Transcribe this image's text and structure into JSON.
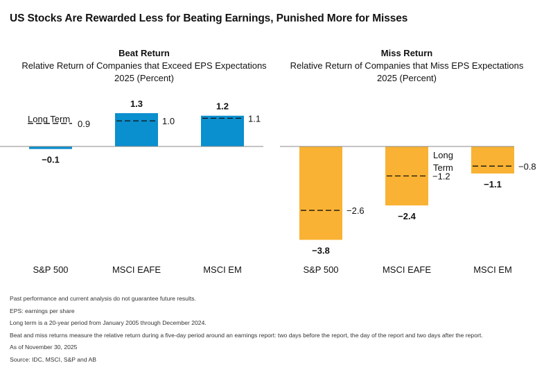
{
  "title": "US Stocks Are Rewarded Less for Beating Earnings, Punished More for Misses",
  "colors": {
    "beat": "#0a8fcf",
    "miss": "#f9b233",
    "dash": "#111111",
    "baseline": "#888888"
  },
  "chart_data": [
    {
      "type": "bar",
      "title": "Beat Return",
      "subtitle": "Relative Return of Companies that Exceed EPS Expectations",
      "period": "2025 (Percent)",
      "categories": [
        "S&P 500",
        "MSCI EAFE",
        "MSCI EM"
      ],
      "values": [
        -0.1,
        1.3,
        1.2
      ],
      "value_labels": [
        "−0.1",
        "1.3",
        "1.2"
      ],
      "long_term": [
        0.9,
        1.0,
        1.1
      ],
      "long_term_labels": [
        "0.9",
        "1.0",
        "1.1"
      ],
      "long_term_legend": [
        "Long Term"
      ],
      "ylim": [
        -0.5,
        1.9
      ]
    },
    {
      "type": "bar",
      "title": "Miss Return",
      "subtitle": "Relative Return of Companies that Miss EPS Expectations",
      "period": "2025 (Percent)",
      "categories": [
        "S&P 500",
        "MSCI EAFE",
        "MSCI EM"
      ],
      "values": [
        -3.8,
        -2.4,
        -1.1
      ],
      "value_labels": [
        "−3.8",
        "−2.4",
        "−1.1"
      ],
      "long_term": [
        -2.6,
        -1.2,
        -0.8
      ],
      "long_term_labels": [
        "−2.6",
        "−1.2",
        "−0.8"
      ],
      "long_term_legend": [
        "Long",
        "Term"
      ],
      "ylim": [
        -4.4,
        0.2
      ]
    }
  ],
  "footnotes": [
    "Past performance and current analysis do not guarantee future results.",
    "EPS: earnings per share",
    "Long term is a 20-year period from January 2005 through December 2024.",
    "Beat and miss returns measure the relative return during a five-day period around an earnings report: two days before the report, the day of the report and two days after the report.",
    "As of November 30, 2025",
    "Source: IDC, MSCI, S&P and AB"
  ]
}
